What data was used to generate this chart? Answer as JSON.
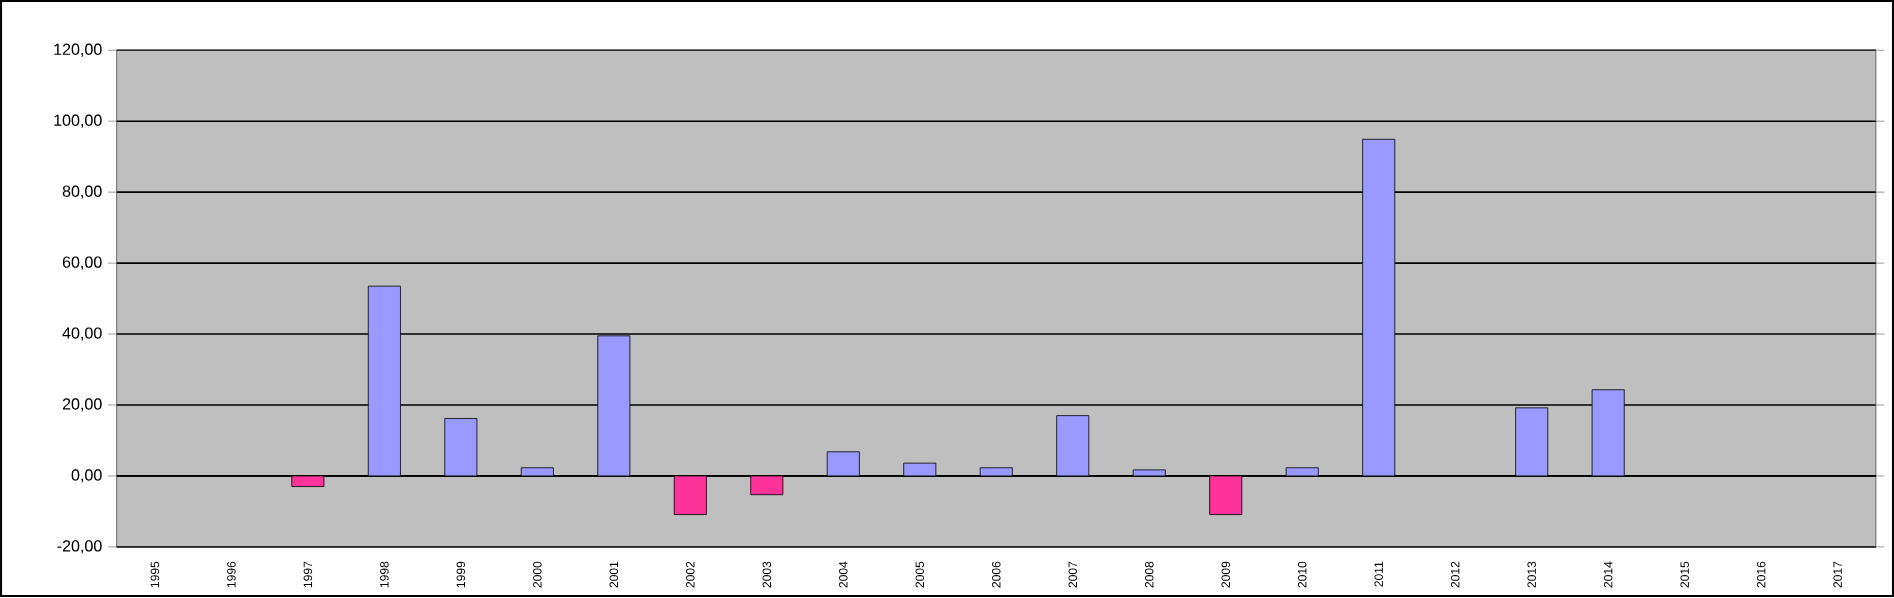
{
  "chart_data": {
    "type": "bar",
    "categories": [
      "1995",
      "1996",
      "1997",
      "1998",
      "1999",
      "2000",
      "2001",
      "2002",
      "2003",
      "2004",
      "2005",
      "2006",
      "2007",
      "2008",
      "2009",
      "2010",
      "2011",
      "2012",
      "2013",
      "2014",
      "2015",
      "2016",
      "2017"
    ],
    "values": [
      null,
      null,
      -3,
      53.5,
      16.2,
      2.3,
      39.5,
      -10.9,
      -5.3,
      6.8,
      3.6,
      2.3,
      17,
      1.7,
      -10.9,
      2.3,
      94.9,
      null,
      19.2,
      24.3,
      null,
      null,
      null
    ],
    "colors": [
      "#9999ff",
      "#9999ff",
      "#ff3399",
      "#9999ff",
      "#9999ff",
      "#9999ff",
      "#9999ff",
      "#ff3399",
      "#ff3399",
      "#9999ff",
      "#9999ff",
      "#9999ff",
      "#9999ff",
      "#9999ff",
      "#ff3399",
      "#9999ff",
      "#9999ff",
      "#9999ff",
      "#9999ff",
      "#9999ff",
      "#9999ff",
      "#9999ff",
      "#9999ff"
    ],
    "ylim": [
      -20,
      120
    ],
    "yticks": [
      {
        "value": -20,
        "label": "-20,00"
      },
      {
        "value": 0,
        "label": "0,00"
      },
      {
        "value": 20,
        "label": "20,00"
      },
      {
        "value": 40,
        "label": "40,00"
      },
      {
        "value": 60,
        "label": "60,00"
      },
      {
        "value": 80,
        "label": "80,00"
      },
      {
        "value": 100,
        "label": "100,00"
      },
      {
        "value": 120,
        "label": "120,00"
      }
    ],
    "grid": "y"
  }
}
